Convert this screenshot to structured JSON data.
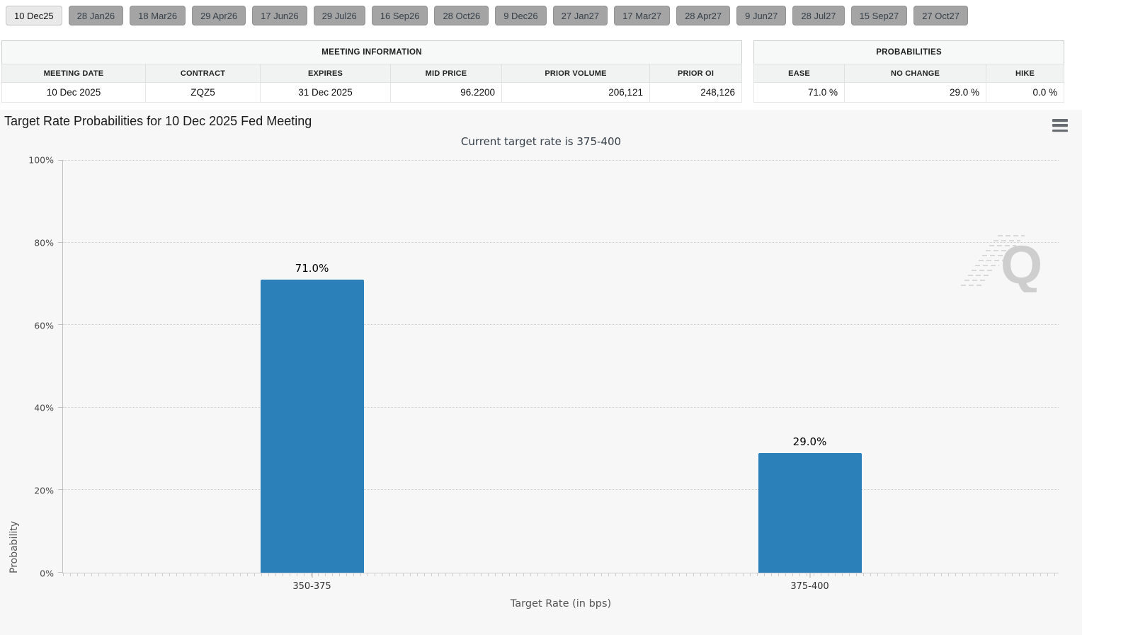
{
  "tabs": {
    "items": [
      {
        "label": "10 Dec25",
        "selected": true
      },
      {
        "label": "28 Jan26",
        "selected": false
      },
      {
        "label": "18 Mar26",
        "selected": false
      },
      {
        "label": "29 Apr26",
        "selected": false
      },
      {
        "label": "17 Jun26",
        "selected": false
      },
      {
        "label": "29 Jul26",
        "selected": false
      },
      {
        "label": "16 Sep26",
        "selected": false
      },
      {
        "label": "28 Oct26",
        "selected": false
      },
      {
        "label": "9 Dec26",
        "selected": false
      },
      {
        "label": "27 Jan27",
        "selected": false
      },
      {
        "label": "17 Mar27",
        "selected": false
      },
      {
        "label": "28 Apr27",
        "selected": false
      },
      {
        "label": "9 Jun27",
        "selected": false
      },
      {
        "label": "28 Jul27",
        "selected": false
      },
      {
        "label": "15 Sep27",
        "selected": false
      },
      {
        "label": "27 Oct27",
        "selected": false
      }
    ]
  },
  "meeting_info": {
    "title": "MEETING INFORMATION",
    "columns": [
      "MEETING DATE",
      "CONTRACT",
      "EXPIRES",
      "MID PRICE",
      "PRIOR VOLUME",
      "PRIOR OI"
    ],
    "row": {
      "meeting_date": "10 Dec 2025",
      "contract": "ZQZ5",
      "expires": "31 Dec 2025",
      "mid_price": "96.2200",
      "prior_volume": "206,121",
      "prior_oi": "248,126"
    }
  },
  "probabilities": {
    "title": "PROBABILITIES",
    "columns": [
      "EASE",
      "NO CHANGE",
      "HIKE"
    ],
    "row": {
      "ease": "71.0 %",
      "no_change": "29.0 %",
      "hike": "0.0 %"
    }
  },
  "chart_data": {
    "type": "bar",
    "title": "Target Rate Probabilities for 10 Dec 2025 Fed Meeting",
    "subtitle": "Current target rate is 375-400",
    "categories": [
      "350-375",
      "375-400"
    ],
    "values": [
      71.0,
      29.0
    ],
    "data_labels": [
      "71.0%",
      "29.0%"
    ],
    "xlabel": "Target Rate (in bps)",
    "ylabel": "Probability",
    "ylim": [
      0,
      100
    ],
    "ytick_labels": [
      "100%",
      "80%",
      "60%",
      "40%",
      "20%",
      "0%"
    ],
    "grid": "horizontal-dotted",
    "legend": "none",
    "bar_color": "#2c80b9"
  },
  "icons": {
    "menu": "hamburger-menu-icon",
    "watermark": "quikstrike-q-watermark"
  },
  "colors": {
    "bar": "#2c80b9",
    "chart_background": "#f7f7f7",
    "tab_selected_background": "#e9e9e9",
    "tab_background": "#a4a4a4",
    "tab_text": "#36404a"
  }
}
